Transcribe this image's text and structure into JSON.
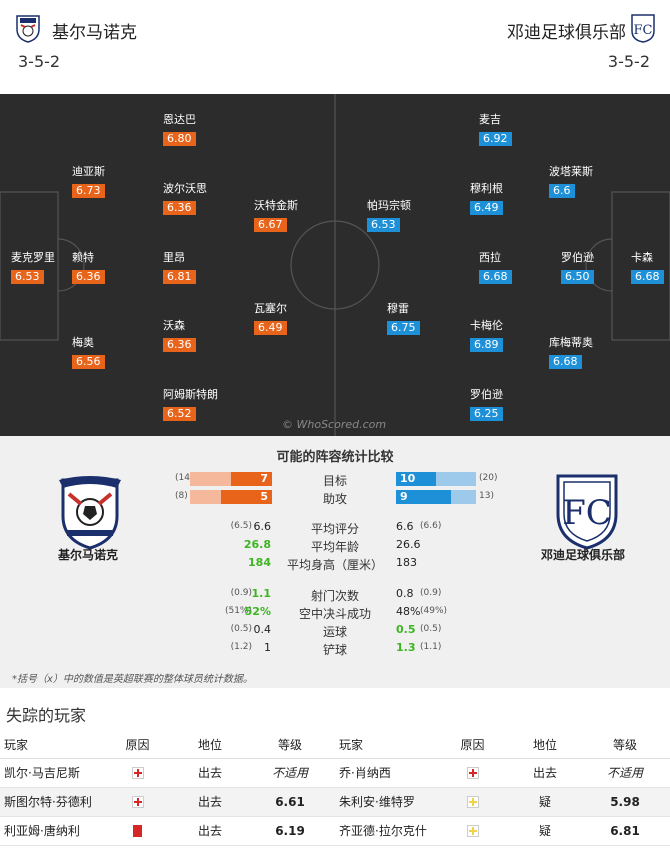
{
  "header": {
    "home_team": "基尔马诺克",
    "away_team": "邓迪足球俱乐部",
    "home_formation": "3-5-2",
    "away_formation": "3-5-2"
  },
  "pitch": {
    "watermark": "© WhoScored.com",
    "home_players": [
      {
        "name": "麦克罗里",
        "rating": "6.53"
      },
      {
        "name": "迪亚斯",
        "rating": "6.73"
      },
      {
        "name": "赖特",
        "rating": "6.36"
      },
      {
        "name": "梅奥",
        "rating": "6.56"
      },
      {
        "name": "恩达巴",
        "rating": "6.80"
      },
      {
        "name": "波尔沃思",
        "rating": "6.36"
      },
      {
        "name": "里昂",
        "rating": "6.81"
      },
      {
        "name": "沃森",
        "rating": "6.36"
      },
      {
        "name": "阿姆斯特朗",
        "rating": "6.52"
      },
      {
        "name": "沃特金斯",
        "rating": "6.67"
      },
      {
        "name": "瓦塞尔",
        "rating": "6.49"
      }
    ],
    "away_players": [
      {
        "name": "帕玛宗顿",
        "rating": "6.53"
      },
      {
        "name": "穆雷",
        "rating": "6.75"
      },
      {
        "name": "麦吉",
        "rating": "6.92"
      },
      {
        "name": "穆利根",
        "rating": "6.49"
      },
      {
        "name": "西拉",
        "rating": "6.68"
      },
      {
        "name": "卡梅伦",
        "rating": "6.89"
      },
      {
        "name": "罗伯逊",
        "rating": "6.25"
      },
      {
        "name": "波塔莱斯",
        "rating": "6.6"
      },
      {
        "name": "罗伯逊",
        "rating": "6.50"
      },
      {
        "name": "库梅蒂奥",
        "rating": "6.68"
      },
      {
        "name": "卡森",
        "rating": "6.68"
      }
    ]
  },
  "stats": {
    "title": "可能的阵容统计比较",
    "home_team": "基尔马诺克",
    "away_team": "邓迪足球俱乐部",
    "bars": [
      {
        "label": "目标",
        "home": "7",
        "home_total": "(14",
        "home_frac": 0.5,
        "away": "10",
        "away_total": "(20)",
        "away_frac": 0.5
      },
      {
        "label": "助攻",
        "home": "5",
        "home_total": "(8)",
        "home_frac": 0.625,
        "away": "9",
        "away_total": "13)",
        "away_frac": 0.69
      }
    ],
    "rows": [
      {
        "label": "平均评分",
        "home": "6.6",
        "home_sub": "(6.5)",
        "away": "6.6",
        "away_sub": "(6.6)",
        "home_better": false,
        "away_better": false
      },
      {
        "label": "平均年龄",
        "home": "26.8",
        "home_sub": "",
        "away": "26.6",
        "away_sub": "",
        "home_better": true,
        "away_better": false
      },
      {
        "label": "平均身高（厘米）",
        "home": "184",
        "home_sub": "",
        "away": "183",
        "away_sub": "",
        "home_better": true,
        "away_better": false
      },
      {
        "label": "射门次数",
        "home": "1.1",
        "home_sub": "(0.9)",
        "away": "0.8",
        "away_sub": "(0.9)",
        "home_better": true,
        "away_better": false
      },
      {
        "label": "空中决斗成功",
        "home": "52%",
        "home_sub": "(51%)",
        "away": "48%",
        "away_sub": "(49%)",
        "home_better": true,
        "away_better": false
      },
      {
        "label": "运球",
        "home": "0.4",
        "home_sub": "(0.5)",
        "away": "0.5",
        "away_sub": "(0.5)",
        "home_better": false,
        "away_better": true
      },
      {
        "label": "铲球",
        "home": "1",
        "home_sub": "(1.2)",
        "away": "1.3",
        "away_sub": "(1.1)",
        "home_better": false,
        "away_better": true
      }
    ],
    "footnote": "*括号（x）中的数值是英超联赛的整体球员统计数据。"
  },
  "missing": {
    "title": "失踪的玩家",
    "headers": [
      "玩家",
      "原因",
      "地位",
      "等级",
      "玩家",
      "原因",
      "地位",
      "等级"
    ],
    "rows": [
      {
        "h_name": "凯尔·马吉尼斯",
        "h_icon": "injury-cross-icon",
        "h_status": "出去",
        "h_grade": "不适用",
        "a_name": "乔·肖纳西",
        "a_icon": "injury-cross-icon",
        "a_status": "出去",
        "a_grade": "不适用"
      },
      {
        "h_name": "斯图尔特·芬德利",
        "h_icon": "injury-cross-icon",
        "h_status": "出去",
        "h_grade": "6.61",
        "a_name": "朱利安·维特罗",
        "a_icon": "doubtful-cross-icon",
        "a_status": "疑",
        "a_grade": "5.98"
      },
      {
        "h_name": "利亚姆·唐纳利",
        "h_icon": "red-card-icon",
        "h_status": "出去",
        "h_grade": "6.19",
        "a_name": "齐亚德·拉尔克什",
        "a_icon": "doubtful-cross-icon",
        "a_status": "疑",
        "a_grade": "6.81"
      }
    ]
  }
}
